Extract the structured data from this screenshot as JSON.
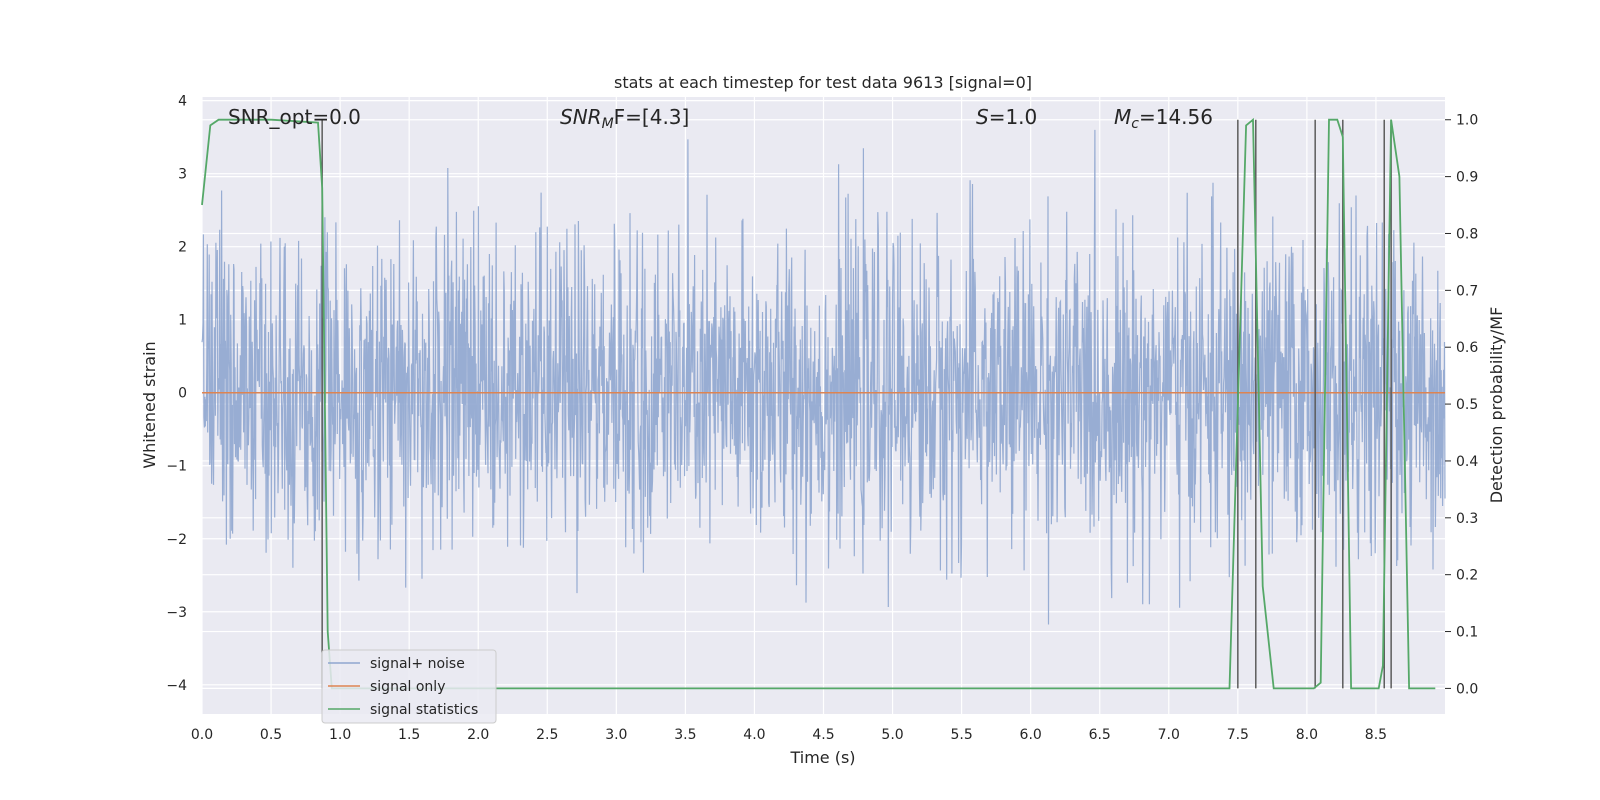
{
  "chart_data": {
    "type": "line",
    "title": "stats at each timestep for test data 9613 [signal=0]",
    "xlabel": "Time (s)",
    "ylabel": "Whitened strain",
    "ylabel_right": "Detection probability/MF",
    "xlim": [
      0,
      9.0
    ],
    "ylim": [
      -4.4,
      4.05
    ],
    "ylim_right": [
      -0.045,
      1.04
    ],
    "grid": true,
    "legend_position": "lower-left",
    "x_ticks": [
      "0.0",
      "0.5",
      "1.0",
      "1.5",
      "2.0",
      "2.5",
      "3.0",
      "3.5",
      "4.0",
      "4.5",
      "5.0",
      "5.5",
      "6.0",
      "6.5",
      "7.0",
      "7.5",
      "8.0",
      "8.5"
    ],
    "y_ticks": [
      "4",
      "3",
      "2",
      "1",
      "0",
      "−1",
      "−2",
      "−3",
      "−4"
    ],
    "y_right_ticks": [
      "1.0",
      "0.9",
      "0.8",
      "0.7",
      "0.6",
      "0.5",
      "0.4",
      "0.3",
      "0.2",
      "0.1",
      "0.0"
    ],
    "annotations": {
      "snr_opt": "SNR_opt=0.0",
      "snr_mf_sym": "SNR",
      "snr_mf_sub": "M",
      "snr_mf_rest": "F=[4.3]",
      "s_sym": "S",
      "s_rest": "=1.0",
      "mc_sym": "M",
      "mc_sub": "c",
      "mc_rest": "=14.56"
    },
    "series": [
      {
        "name": "signal+ noise",
        "color": "#8fa6cf",
        "axis": "left",
        "description": "dense whitened noise trace, roughly within [-3.4, 3.6]"
      },
      {
        "name": "signal only",
        "color": "#dd8452",
        "axis": "left",
        "x": [
          0,
          9.0
        ],
        "y": [
          0,
          0
        ]
      },
      {
        "name": "signal statistics",
        "color": "#55a868",
        "axis": "right",
        "x": [
          0,
          0.06,
          0.12,
          0.5,
          0.84,
          0.87,
          0.91,
          0.94,
          1.0,
          7.44,
          7.56,
          7.61,
          7.68,
          7.76,
          8.05,
          8.1,
          8.16,
          8.22,
          8.26,
          8.32,
          8.52,
          8.55,
          8.61,
          8.67,
          8.74,
          8.93
        ],
        "y": [
          0.85,
          0.99,
          1.0,
          1.0,
          0.995,
          0.88,
          0.1,
          0.0,
          0.0,
          0.0,
          0.99,
          1.0,
          0.18,
          0.0,
          0.0,
          0.01,
          1.0,
          1.0,
          0.97,
          0.0,
          0.0,
          0.04,
          1.0,
          0.9,
          0.0,
          0.0
        ]
      }
    ],
    "threshold_events": [
      0.87,
      7.5,
      7.63,
      8.06,
      8.26,
      8.56,
      8.61
    ],
    "colors": {
      "axes_bg": "#eaeaf2",
      "grid": "#ffffff",
      "noise": "#8fa6cf",
      "signal_only": "#dd8452",
      "statistics": "#55a868",
      "event_line": "#5c5c5c"
    }
  }
}
